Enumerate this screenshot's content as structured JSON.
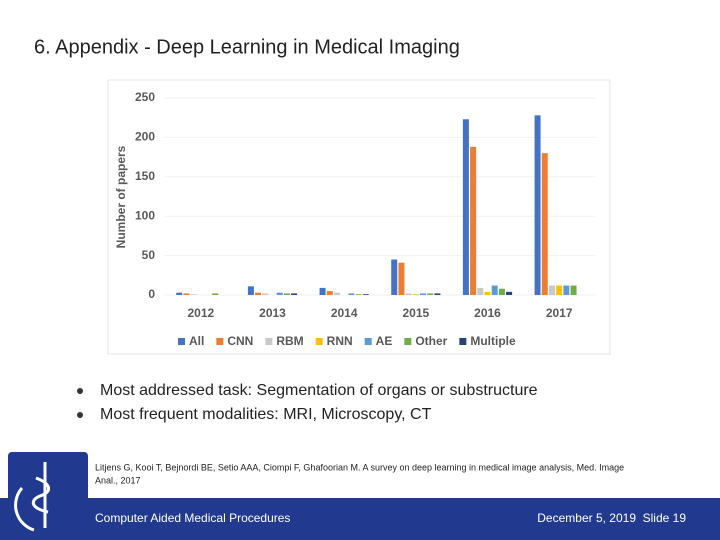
{
  "slide": {
    "title": "6. Appendix - Deep Learning in Medical Imaging",
    "bullets": [
      "Most addressed task: Segmentation of organs or substructure",
      "Most frequent modalities: MRI, Microscopy, CT"
    ],
    "citation": [
      "Litjens G, Kooi T, Bejnordi BE, Setio AAA, Ciompi F, Ghafoorian M. A survey on deep learning in medical image analysis, Med. Image",
      "Anal., 2017"
    ],
    "footer": {
      "left": "Computer Aided Medical Procedures",
      "date": "December 5, 2019",
      "slide": "Slide 19"
    }
  },
  "chart_data": {
    "type": "bar",
    "y_label": "Number of papers",
    "categories": [
      "2012",
      "2013",
      "2014",
      "2015",
      "2016",
      "2017"
    ],
    "series": [
      {
        "name": "All",
        "color": "#4472c4",
        "values": [
          3,
          11,
          9,
          45,
          223,
          228
        ]
      },
      {
        "name": "CNN",
        "color": "#ed7d31",
        "values": [
          2,
          3,
          5,
          41,
          188,
          180
        ]
      },
      {
        "name": "RBM",
        "color": "#c9c9c9",
        "values": [
          1,
          2,
          3,
          2,
          9,
          12
        ]
      },
      {
        "name": "RNN",
        "color": "#ffc000",
        "values": [
          0,
          0,
          0,
          1,
          4,
          12
        ]
      },
      {
        "name": "AE",
        "color": "#5b9bd5",
        "values": [
          0,
          3,
          2,
          2,
          12,
          12
        ]
      },
      {
        "name": "Other",
        "color": "#70ad47",
        "values": [
          2,
          2,
          1,
          2,
          8,
          12
        ]
      },
      {
        "name": "Multiple",
        "color": "#264478",
        "values": [
          0,
          2,
          1,
          2,
          4,
          0
        ]
      }
    ],
    "ylim": [
      0,
      250
    ],
    "yticks": [
      0,
      50,
      100,
      150,
      200,
      250
    ],
    "grid": true
  }
}
